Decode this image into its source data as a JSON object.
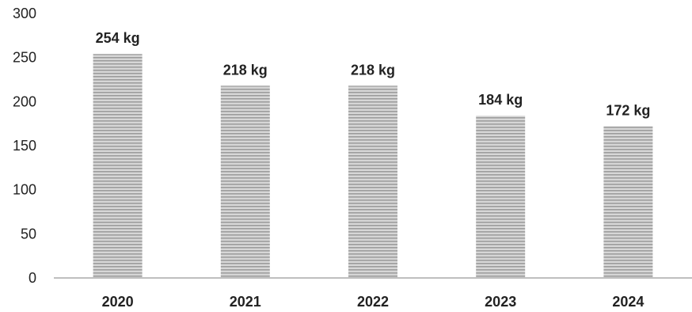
{
  "chart_data": {
    "type": "bar",
    "title": "",
    "xlabel": "",
    "ylabel": "",
    "categories": [
      "2020",
      "2021",
      "2022",
      "2023",
      "2024"
    ],
    "values": [
      254,
      218,
      218,
      184,
      172
    ],
    "data_labels": [
      "254 kg",
      "218 kg",
      "218 kg",
      "184 kg",
      "172 kg"
    ],
    "ylim": [
      0,
      300
    ],
    "yticks": [
      0,
      50,
      100,
      150,
      200,
      250,
      300
    ],
    "ytick_labels": [
      "0",
      "50",
      "100",
      "150",
      "200",
      "250",
      "300"
    ],
    "grid": false,
    "legend": "none",
    "colors": {
      "bar_fill": "#c8c8c8",
      "bar_stripe": "#9a9a9a",
      "axis": "#bfbfbf",
      "text": "#222222"
    }
  }
}
